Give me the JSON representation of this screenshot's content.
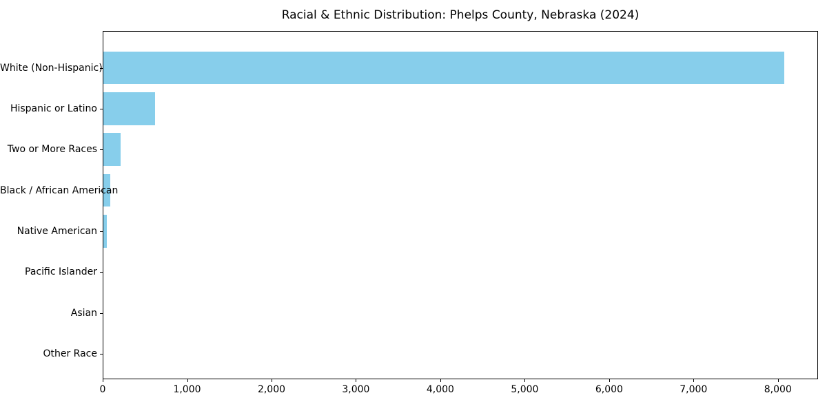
{
  "title": "Racial & Ethnic Distribution: Phelps County, Nebraska (2024)",
  "chart_data": {
    "type": "bar",
    "orientation": "horizontal",
    "title": "Racial & Ethnic Distribution: Phelps County, Nebraska (2024)",
    "xlabel": "",
    "ylabel": "",
    "categories": [
      "White (Non-Hispanic)",
      "Hispanic or Latino",
      "Two or More Races",
      "Black / African American",
      "Native American",
      "Pacific Islander",
      "Asian",
      "Other Race"
    ],
    "values": [
      8070,
      615,
      205,
      80,
      40,
      0,
      0,
      0
    ],
    "xlim": [
      0,
      8475
    ],
    "x_ticks": [
      0,
      1000,
      2000,
      3000,
      4000,
      5000,
      6000,
      7000,
      8000
    ],
    "x_tick_labels": [
      "0",
      "1,000",
      "2,000",
      "3,000",
      "4,000",
      "5,000",
      "6,000",
      "7,000",
      "8,000"
    ],
    "bar_color": "#87CEEB",
    "axis_color": "#000000",
    "grid": false,
    "legend": false
  }
}
